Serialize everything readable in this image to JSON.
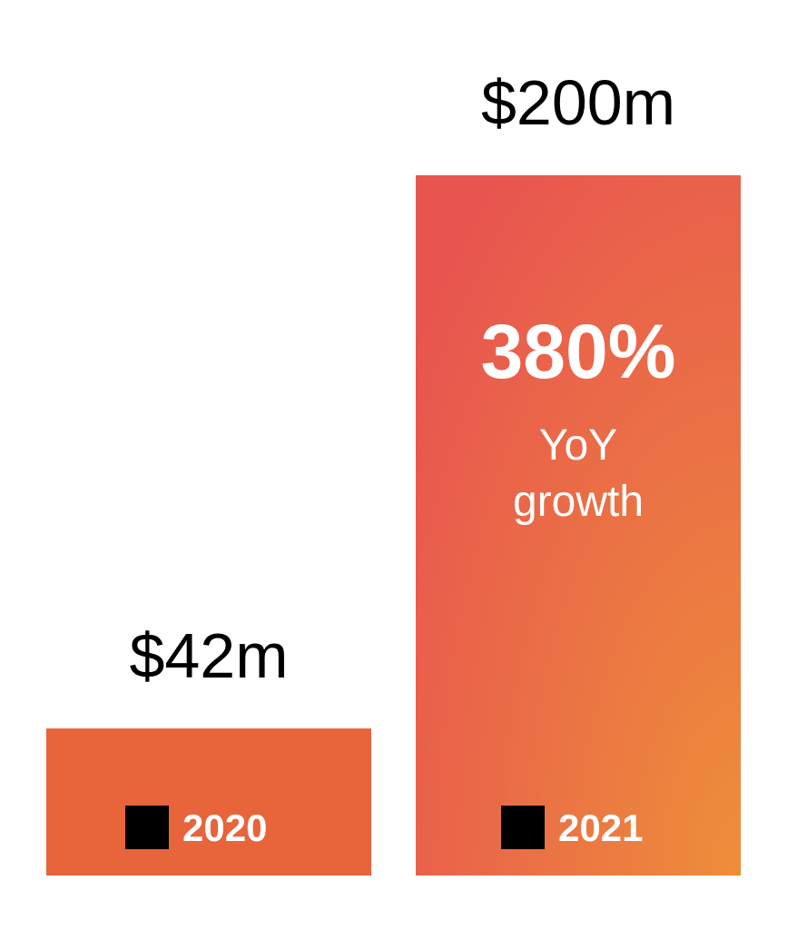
{
  "chart_data": {
    "type": "bar",
    "categories": [
      "2020",
      "2021"
    ],
    "values": [
      42,
      200
    ],
    "value_labels": [
      "$42m",
      "$200m"
    ],
    "ylim": [
      0,
      200
    ],
    "grid": false,
    "annotation": {
      "value": "380%",
      "caption_line1": "YoY",
      "caption_line2": "growth"
    }
  },
  "colors": {
    "bar_2020": "#e8643a",
    "bar_2021_top": "#e8554f",
    "bar_2021_bottom": "#ee8e3a",
    "marker": "#000000",
    "value_text": "#000000",
    "inner_text": "#ffffff"
  },
  "icons": {
    "category_marker": "black-square-icon"
  }
}
